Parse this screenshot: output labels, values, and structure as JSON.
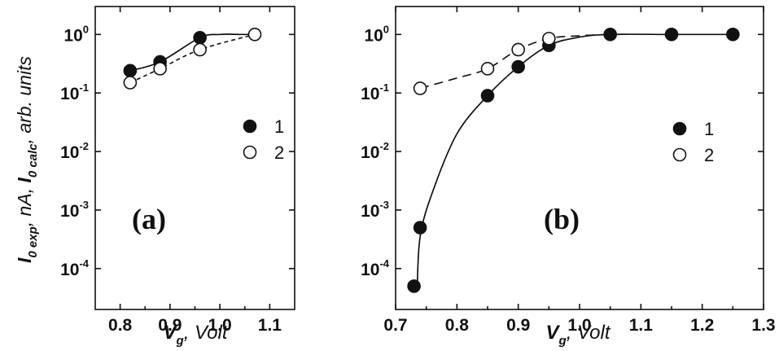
{
  "chart_data": [
    {
      "type": "scatter",
      "panel_label": "(a)",
      "xlabel_main": "V",
      "xlabel_sub": "g",
      "xlabel_rest": ", Volt",
      "ylabel_parts": [
        {
          "main": "I",
          "sub": "0 exp",
          "rest": ", nA,"
        },
        {
          "main": "I",
          "sub": "0 calc",
          "rest": ", arb. units"
        }
      ],
      "xlim": [
        0.75,
        1.15
      ],
      "xticks": [
        "0.8",
        "0.9",
        "1.0",
        "1.1"
      ],
      "xtick_values": [
        0.8,
        0.9,
        1.0,
        1.1
      ],
      "yscale": "log",
      "ylim": [
        2e-05,
        3
      ],
      "yticks": [
        {
          "value": 1,
          "base": "10",
          "exp": "0"
        },
        {
          "value": 0.1,
          "base": "10",
          "exp": "-1"
        },
        {
          "value": 0.01,
          "base": "10",
          "exp": "-2"
        },
        {
          "value": 0.001,
          "base": "10",
          "exp": "-3"
        },
        {
          "value": 0.0001,
          "base": "10",
          "exp": "-4"
        }
      ],
      "legend_position": "right",
      "series": [
        {
          "name": "1",
          "marker": "filled-circle",
          "line": "solid",
          "x": [
            0.82,
            0.88,
            0.96
          ],
          "y": [
            0.24,
            0.34,
            0.88
          ],
          "curve_x": [
            0.82,
            0.88,
            0.96,
            1.0,
            1.04,
            1.07
          ],
          "curve_y": [
            0.24,
            0.34,
            0.88,
            1.0,
            1.0,
            1.0
          ]
        },
        {
          "name": "2",
          "marker": "open-circle",
          "line": "dashed",
          "x": [
            0.82,
            0.88,
            0.96,
            1.07
          ],
          "y": [
            0.15,
            0.26,
            0.55,
            1.0
          ],
          "curve_x": [
            0.82,
            0.88,
            0.96,
            1.07
          ],
          "curve_y": [
            0.15,
            0.26,
            0.55,
            1.0
          ]
        }
      ]
    },
    {
      "type": "scatter",
      "panel_label": "(b)",
      "xlabel_main": "V",
      "xlabel_sub": "g",
      "xlabel_rest": ", Volt",
      "xlim": [
        0.7,
        1.3
      ],
      "xticks": [
        "0.7",
        "0.8",
        "0.9",
        "1.0",
        "1.1",
        "1.2",
        "1.3"
      ],
      "xtick_values": [
        0.7,
        0.8,
        0.9,
        1.0,
        1.1,
        1.2,
        1.3
      ],
      "yscale": "log",
      "ylim": [
        2e-05,
        3
      ],
      "yticks": [
        {
          "value": 1,
          "base": "10",
          "exp": "0"
        },
        {
          "value": 0.1,
          "base": "10",
          "exp": "-1"
        },
        {
          "value": 0.01,
          "base": "10",
          "exp": "-2"
        },
        {
          "value": 0.001,
          "base": "10",
          "exp": "-3"
        },
        {
          "value": 0.0001,
          "base": "10",
          "exp": "-4"
        }
      ],
      "legend_position": "right",
      "series": [
        {
          "name": "1",
          "marker": "filled-circle",
          "line": "solid",
          "x": [
            0.73,
            0.74,
            0.85,
            0.9,
            0.95,
            1.05,
            1.15,
            1.25
          ],
          "y": [
            5e-05,
            0.0005,
            0.09,
            0.28,
            0.65,
            1.0,
            1.0,
            1.0
          ],
          "curve_x": [
            0.735,
            0.74,
            0.76,
            0.8,
            0.85,
            0.9,
            0.95,
            1.0,
            1.05,
            1.15,
            1.25
          ],
          "curve_y": [
            4e-05,
            0.00035,
            0.002,
            0.02,
            0.09,
            0.28,
            0.65,
            0.9,
            1.0,
            1.0,
            1.0
          ]
        },
        {
          "name": "2",
          "marker": "open-circle",
          "line": "dashed",
          "x": [
            0.74,
            0.85,
            0.9,
            0.95
          ],
          "y": [
            0.12,
            0.26,
            0.55,
            0.85
          ],
          "curve_x": [
            0.74,
            0.8,
            0.85,
            0.9,
            0.95,
            1.0,
            1.05
          ],
          "curve_y": [
            0.12,
            0.18,
            0.26,
            0.55,
            0.85,
            0.95,
            1.0
          ]
        }
      ]
    }
  ]
}
